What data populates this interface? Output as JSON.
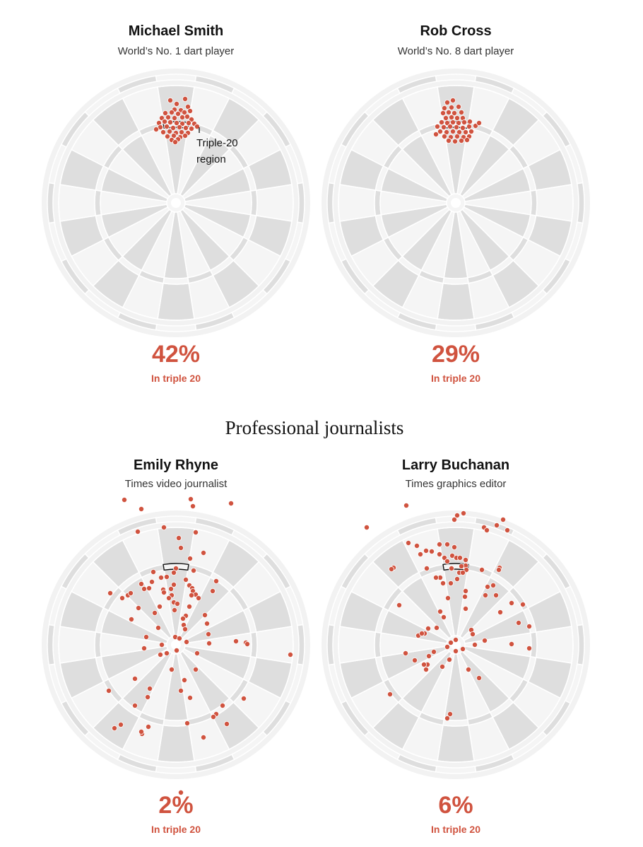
{
  "section_title": "Professional journalists",
  "annotation": {
    "line1": "Triple-20",
    "line2": "region"
  },
  "colors": {
    "dart": "#d0533f",
    "board_dark": "#dedede",
    "board_light": "#f5f5f5",
    "rim": "#f2f2f2"
  },
  "chart_data": [
    {
      "type": "scatter",
      "title": "Michael Smith",
      "subtitle": "World’s No. 1 dart player",
      "stat_value": "42%",
      "stat_label": "In triple 20",
      "points": [
        [
          -8,
          -145
        ],
        [
          1,
          -140
        ],
        [
          13,
          -147
        ],
        [
          -2,
          -132
        ],
        [
          7,
          -131
        ],
        [
          17,
          -136
        ],
        [
          -15,
          -127
        ],
        [
          -6,
          -128
        ],
        [
          3,
          -126
        ],
        [
          12,
          -128
        ],
        [
          20,
          -130
        ],
        [
          -20,
          -120
        ],
        [
          -11,
          -121
        ],
        [
          -2,
          -120
        ],
        [
          9,
          -121
        ],
        [
          16,
          -122
        ],
        [
          22,
          -118
        ],
        [
          -24,
          -113
        ],
        [
          -16,
          -115
        ],
        [
          -8,
          -114
        ],
        [
          1,
          -113
        ],
        [
          9,
          -112
        ],
        [
          18,
          -113
        ],
        [
          26,
          -112
        ],
        [
          -22,
          -107
        ],
        [
          -13,
          -108
        ],
        [
          -4,
          -106
        ],
        [
          5,
          -107
        ],
        [
          14,
          -106
        ],
        [
          22,
          -105
        ],
        [
          -18,
          -100
        ],
        [
          -9,
          -101
        ],
        [
          0,
          -99
        ],
        [
          8,
          -100
        ],
        [
          17,
          -99
        ],
        [
          -12,
          -94
        ],
        [
          -3,
          -95
        ],
        [
          6,
          -93
        ],
        [
          13,
          -95
        ],
        [
          -6,
          -89
        ],
        [
          3,
          -90
        ],
        [
          -28,
          -104
        ],
        [
          30,
          -108
        ],
        [
          -1,
          -86
        ]
      ]
    },
    {
      "type": "scatter",
      "title": "Rob Cross",
      "subtitle": "World’s No. 8 dart player",
      "stat_value": "29%",
      "stat_label": "In triple 20",
      "points": [
        [
          -12,
          -142
        ],
        [
          -4,
          -145
        ],
        [
          -16,
          -134
        ],
        [
          -6,
          -135
        ],
        [
          4,
          -136
        ],
        [
          -18,
          -127
        ],
        [
          -10,
          -128
        ],
        [
          -2,
          -127
        ],
        [
          8,
          -128
        ],
        [
          -14,
          -120
        ],
        [
          -6,
          -121
        ],
        [
          2,
          -120
        ],
        [
          10,
          -120
        ],
        [
          -20,
          -114
        ],
        [
          -12,
          -113
        ],
        [
          -4,
          -114
        ],
        [
          4,
          -113
        ],
        [
          12,
          -114
        ],
        [
          20,
          -115
        ],
        [
          -26,
          -108
        ],
        [
          -17,
          -107
        ],
        [
          -8,
          -108
        ],
        [
          1,
          -107
        ],
        [
          10,
          -106
        ],
        [
          19,
          -108
        ],
        [
          28,
          -109
        ],
        [
          -22,
          -101
        ],
        [
          -13,
          -100
        ],
        [
          -4,
          -101
        ],
        [
          5,
          -100
        ],
        [
          14,
          -100
        ],
        [
          22,
          -101
        ],
        [
          -16,
          -94
        ],
        [
          -7,
          -93
        ],
        [
          2,
          -94
        ],
        [
          11,
          -93
        ],
        [
          19,
          -94
        ],
        [
          -10,
          -88
        ],
        [
          -1,
          -87
        ],
        [
          8,
          -88
        ],
        [
          16,
          -89
        ],
        [
          -28,
          -97
        ],
        [
          33,
          -113
        ]
      ]
    },
    {
      "type": "scatter",
      "title": "Emily Rhyne",
      "subtitle": "Times video journalist",
      "stat_value": "2%",
      "stat_label": "In triple 20",
      "points": [
        [
          -73,
          -205
        ],
        [
          -49,
          -192
        ],
        [
          21,
          -206
        ],
        [
          24,
          -196
        ],
        [
          78,
          -200
        ],
        [
          -54,
          -160
        ],
        [
          -17,
          -166
        ],
        [
          28,
          -159
        ],
        [
          4,
          -151
        ],
        [
          7,
          -137
        ],
        [
          39,
          -130
        ],
        [
          20,
          -122
        ],
        [
          -32,
          -103
        ],
        [
          0,
          -108
        ],
        [
          25,
          -105
        ],
        [
          -3,
          -102
        ],
        [
          -13,
          -96
        ],
        [
          -21,
          -95
        ],
        [
          14,
          -92
        ],
        [
          57,
          -90
        ],
        [
          -34,
          -89
        ],
        [
          -49,
          -86
        ],
        [
          19,
          -84
        ],
        [
          23,
          -80
        ],
        [
          -3,
          -85
        ],
        [
          -45,
          -79
        ],
        [
          -38,
          -80
        ],
        [
          -7,
          -79
        ],
        [
          -18,
          -78
        ],
        [
          24,
          -76
        ],
        [
          -93,
          -73
        ],
        [
          -68,
          -70
        ],
        [
          -64,
          -73
        ],
        [
          -17,
          -74
        ],
        [
          52,
          -76
        ],
        [
          28,
          -71
        ],
        [
          -76,
          -66
        ],
        [
          -6,
          -70
        ],
        [
          22,
          -70
        ],
        [
          32,
          -66
        ],
        [
          -10,
          -66
        ],
        [
          -3,
          -60
        ],
        [
          2,
          -58
        ],
        [
          -53,
          -52
        ],
        [
          -23,
          -54
        ],
        [
          19,
          -54
        ],
        [
          -30,
          -45
        ],
        [
          -2,
          -49
        ],
        [
          14,
          -41
        ],
        [
          -63,
          -36
        ],
        [
          41,
          -42
        ],
        [
          10,
          -37
        ],
        [
          44,
          -30
        ],
        [
          11,
          -28
        ],
        [
          13,
          -22
        ],
        [
          -25,
          -24
        ],
        [
          46,
          -15
        ],
        [
          -42,
          -11
        ],
        [
          -1,
          -11
        ],
        [
          5,
          -9
        ],
        [
          15,
          -4
        ],
        [
          99,
          -3
        ],
        [
          85,
          -5
        ],
        [
          101,
          -1
        ],
        [
          1,
          8
        ],
        [
          47,
          -2
        ],
        [
          -20,
          0
        ],
        [
          -45,
          5
        ],
        [
          -22,
          14
        ],
        [
          30,
          12
        ],
        [
          -13,
          12
        ],
        [
          162,
          14
        ],
        [
          -6,
          35
        ],
        [
          28,
          35
        ],
        [
          -58,
          48
        ],
        [
          12,
          50
        ],
        [
          -37,
          62
        ],
        [
          7,
          65
        ],
        [
          -95,
          65
        ],
        [
          -40,
          74
        ],
        [
          20,
          75
        ],
        [
          96,
          76
        ],
        [
          66,
          86
        ],
        [
          -58,
          86
        ],
        [
          57,
          98
        ],
        [
          53,
          102
        ],
        [
          -39,
          116
        ],
        [
          -48,
          126
        ],
        [
          -87,
          118
        ],
        [
          16,
          111
        ],
        [
          39,
          131
        ],
        [
          -49,
          123
        ],
        [
          -78,
          113
        ],
        [
          72,
          112
        ],
        [
          7,
          209
        ]
      ]
    },
    {
      "type": "scatter",
      "title": "Larry Buchanan",
      "subtitle": "Times graphics editor",
      "stat_value": "6%",
      "stat_label": "In triple 20",
      "points": [
        [
          -70,
          -197
        ],
        [
          -126,
          -166
        ],
        [
          11,
          -186
        ],
        [
          2,
          -183
        ],
        [
          -2,
          -177
        ],
        [
          67,
          -177
        ],
        [
          58,
          -169
        ],
        [
          40,
          -166
        ],
        [
          44,
          -162
        ],
        [
          73,
          -162
        ],
        [
          -67,
          -144
        ],
        [
          -55,
          -140
        ],
        [
          -23,
          -142
        ],
        [
          -12,
          -142
        ],
        [
          -42,
          -133
        ],
        [
          -34,
          -132
        ],
        [
          -2,
          -138
        ],
        [
          -50,
          -128
        ],
        [
          -23,
          -128
        ],
        [
          -5,
          -126
        ],
        [
          -16,
          -123
        ],
        [
          1,
          -123
        ],
        [
          6,
          -123
        ],
        [
          -12,
          -118
        ],
        [
          -88,
          -109
        ],
        [
          -91,
          -107
        ],
        [
          -41,
          -108
        ],
        [
          14,
          -112
        ],
        [
          14,
          -120
        ],
        [
          8,
          -111
        ],
        [
          15,
          -106
        ],
        [
          5,
          -102
        ],
        [
          2,
          -93
        ],
        [
          -22,
          -95
        ],
        [
          -28,
          -95
        ],
        [
          -18,
          -87
        ],
        [
          -7,
          -87
        ],
        [
          62,
          -109
        ],
        [
          61,
          -106
        ],
        [
          10,
          -102
        ],
        [
          -6,
          -108
        ],
        [
          37,
          -106
        ],
        [
          53,
          -84
        ],
        [
          45,
          -82
        ],
        [
          14,
          -76
        ],
        [
          57,
          -70
        ],
        [
          42,
          -70
        ],
        [
          -11,
          -66
        ],
        [
          13,
          -68
        ],
        [
          -80,
          -56
        ],
        [
          14,
          -51
        ],
        [
          63,
          -46
        ],
        [
          79,
          -59
        ],
        [
          95,
          -57
        ],
        [
          -17,
          -39
        ],
        [
          -22,
          -47
        ],
        [
          89,
          -31
        ],
        [
          -39,
          -23
        ],
        [
          104,
          -26
        ],
        [
          -27,
          -24
        ],
        [
          22,
          -21
        ],
        [
          24,
          -15
        ],
        [
          104,
          5
        ],
        [
          79,
          -1
        ],
        [
          -53,
          -13
        ],
        [
          41,
          -6
        ],
        [
          -44,
          -16
        ],
        [
          -48,
          -16
        ],
        [
          0,
          -7
        ],
        [
          -7,
          -3
        ],
        [
          -12,
          3
        ],
        [
          10,
          6
        ],
        [
          0,
          9
        ],
        [
          27,
          0
        ],
        [
          -31,
          10
        ],
        [
          -38,
          16
        ],
        [
          -71,
          12
        ],
        [
          -58,
          22
        ],
        [
          -9,
          21
        ],
        [
          -40,
          28
        ],
        [
          -42,
          35
        ],
        [
          -45,
          28
        ],
        [
          -19,
          31
        ],
        [
          18,
          35
        ],
        [
          33,
          47
        ],
        [
          -93,
          70
        ],
        [
          -8,
          98
        ],
        [
          -12,
          104
        ]
      ]
    }
  ]
}
